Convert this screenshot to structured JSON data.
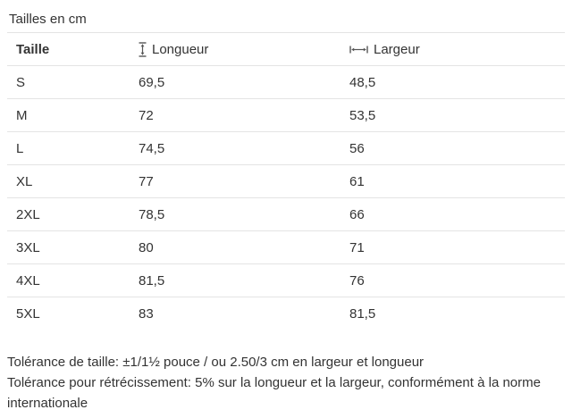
{
  "title": "Tailles en cm",
  "table": {
    "columns": [
      {
        "label": "Taille"
      },
      {
        "label": "Longueur",
        "icon": "height-arrow-icon"
      },
      {
        "label": "Largeur",
        "icon": "width-arrow-icon"
      }
    ],
    "rows": [
      {
        "size": "S",
        "longueur": "69,5",
        "largeur": "48,5"
      },
      {
        "size": "M",
        "longueur": "72",
        "largeur": "53,5"
      },
      {
        "size": "L",
        "longueur": "74,5",
        "largeur": "56"
      },
      {
        "size": "XL",
        "longueur": "77",
        "largeur": "61"
      },
      {
        "size": "2XL",
        "longueur": "78,5",
        "largeur": "66"
      },
      {
        "size": "3XL",
        "longueur": "80",
        "largeur": "71"
      },
      {
        "size": "4XL",
        "longueur": "81,5",
        "largeur": "76"
      },
      {
        "size": "5XL",
        "longueur": "83",
        "largeur": "81,5"
      }
    ]
  },
  "footer": {
    "tolerance_size": "Tolérance de taille: ±1/1½ pouce / ou 2.50/3 cm en largeur et longueur",
    "tolerance_shrink": "Tolérance pour rétrécissement: 5% sur la longueur et la largeur, conformément à la norme internationale"
  },
  "colors": {
    "text": "#333333",
    "border": "#e4e4e4",
    "icon": "#555555"
  }
}
